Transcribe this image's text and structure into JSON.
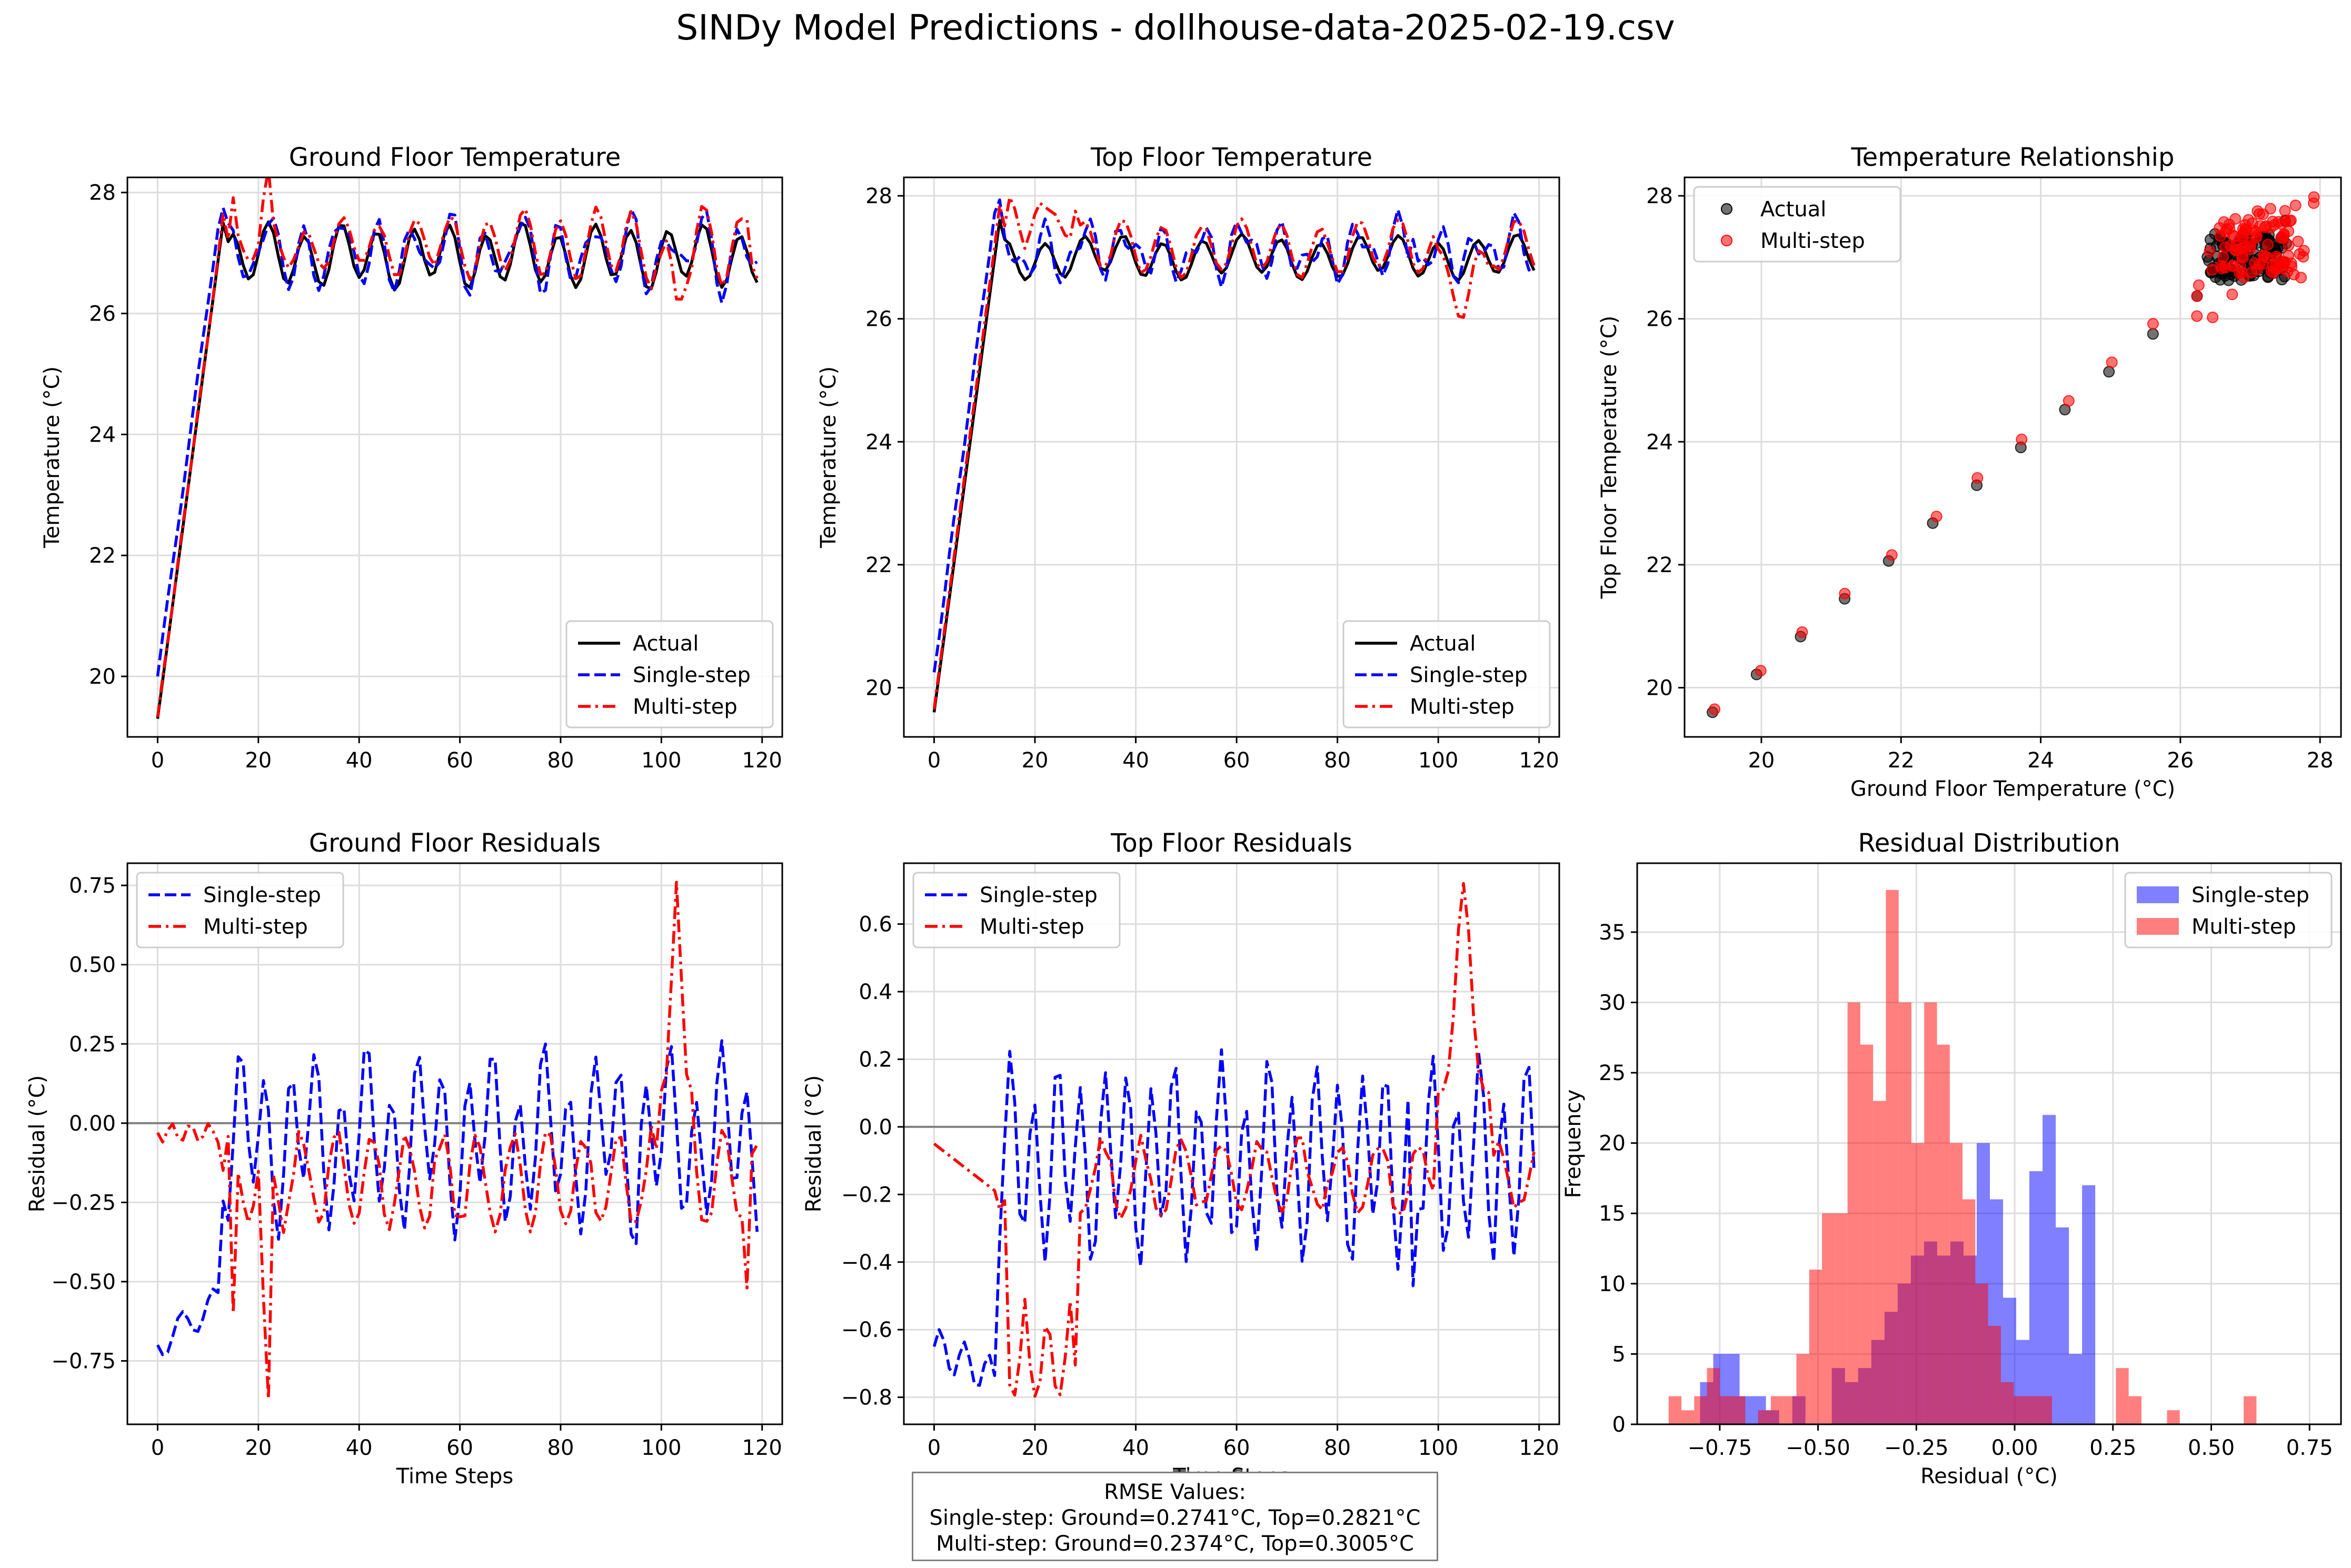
{
  "suptitle": "SINDy Model Predictions - dollhouse-data-2025-02-19.csv",
  "colors": {
    "actual": "#000000",
    "single": "#0000ff",
    "multi": "#ff0000",
    "zero_line": "#808080",
    "grid": "#d9d9d9"
  },
  "rmse": {
    "title": "RMSE Values:",
    "single": "Single-step: Ground=0.2741°C, Top=0.2821°C",
    "multi": "Multi-step: Ground=0.2374°C, Top=0.3005°C"
  },
  "chart_data": [
    {
      "id": "ground_temp",
      "type": "line",
      "title": "Ground Floor Temperature",
      "xlabel": "",
      "ylabel": "Temperature (°C)",
      "xlim": [
        -6,
        124
      ],
      "ylim": [
        19.0,
        28.25
      ],
      "xticks": [
        0,
        20,
        40,
        60,
        80,
        100,
        120
      ],
      "yticks": [
        20,
        22,
        24,
        26,
        28
      ],
      "legend": "lower-right",
      "series": [
        {
          "name": "Actual",
          "style": "solid",
          "color": "#000000",
          "kind": "ground_actual"
        },
        {
          "name": "Single-step",
          "style": "dashed",
          "color": "#0000ff",
          "kind": "ground_single"
        },
        {
          "name": "Multi-step",
          "style": "dashdot",
          "color": "#ff0000",
          "kind": "ground_multi"
        }
      ]
    },
    {
      "id": "top_temp",
      "type": "line",
      "title": "Top Floor Temperature",
      "xlabel": "",
      "ylabel": "Temperature (°C)",
      "xlim": [
        -6,
        124
      ],
      "ylim": [
        19.2,
        28.3
      ],
      "xticks": [
        0,
        20,
        40,
        60,
        80,
        100,
        120
      ],
      "yticks": [
        20,
        22,
        24,
        26,
        28
      ],
      "legend": "lower-right",
      "series": [
        {
          "name": "Actual",
          "style": "solid",
          "color": "#000000",
          "kind": "top_actual"
        },
        {
          "name": "Single-step",
          "style": "dashed",
          "color": "#0000ff",
          "kind": "top_single"
        },
        {
          "name": "Multi-step",
          "style": "dashdot",
          "color": "#ff0000",
          "kind": "top_multi"
        }
      ]
    },
    {
      "id": "relationship",
      "type": "scatter",
      "title": "Temperature Relationship",
      "xlabel": "Ground Floor Temperature (°C)",
      "ylabel": "Top Floor Temperature (°C)",
      "xlim": [
        18.9,
        28.3
      ],
      "ylim": [
        19.2,
        28.3
      ],
      "xticks": [
        20,
        22,
        24,
        26,
        28
      ],
      "yticks": [
        20,
        22,
        24,
        26,
        28
      ],
      "legend": "upper-left",
      "series": [
        {
          "name": "Actual",
          "style": "marker",
          "color": "#000000",
          "kind": "scatter_actual"
        },
        {
          "name": "Multi-step",
          "style": "marker",
          "color": "#ff0000",
          "kind": "scatter_multi"
        }
      ]
    },
    {
      "id": "ground_resid",
      "type": "line",
      "title": "Ground Floor Residuals",
      "xlabel": "Time Steps",
      "ylabel": "Residual (°C)",
      "xlim": [
        -6,
        124
      ],
      "ylim": [
        -0.95,
        0.82
      ],
      "xticks": [
        0,
        20,
        40,
        60,
        80,
        100,
        120
      ],
      "yticks": [
        -0.75,
        -0.5,
        -0.25,
        0.0,
        0.25,
        0.5,
        0.75
      ],
      "ytick_labels": [
        "−0.75",
        "−0.50",
        "−0.25",
        "0.00",
        "0.25",
        "0.50",
        "0.75"
      ],
      "legend": "upper-left",
      "zero_line": true,
      "series": [
        {
          "name": "Single-step",
          "style": "dashed",
          "color": "#0000ff",
          "kind": "gres_single"
        },
        {
          "name": "Multi-step",
          "style": "dashdot",
          "color": "#ff0000",
          "kind": "gres_multi"
        }
      ]
    },
    {
      "id": "top_resid",
      "type": "line",
      "title": "Top Floor Residuals",
      "xlabel": "Time Steps",
      "ylabel": "Residual (°C)",
      "xlim": [
        -6,
        124
      ],
      "ylim": [
        -0.88,
        0.78
      ],
      "xticks": [
        0,
        20,
        40,
        60,
        80,
        100,
        120
      ],
      "yticks": [
        -0.8,
        -0.6,
        -0.4,
        -0.2,
        0.0,
        0.2,
        0.4,
        0.6
      ],
      "ytick_labels": [
        "−0.8",
        "−0.6",
        "−0.4",
        "−0.2",
        "0.0",
        "0.2",
        "0.4",
        "0.6"
      ],
      "legend": "upper-left",
      "zero_line": true,
      "series": [
        {
          "name": "Single-step",
          "style": "dashed",
          "color": "#0000ff",
          "kind": "tres_single"
        },
        {
          "name": "Multi-step",
          "style": "dashdot",
          "color": "#ff0000",
          "kind": "tres_multi"
        }
      ]
    },
    {
      "id": "resid_dist",
      "type": "bar",
      "title": "Residual Distribution",
      "xlabel": "Residual (°C)",
      "ylabel": "Frequency",
      "xlim": [
        -0.96,
        0.83
      ],
      "ylim": [
        0,
        39.9
      ],
      "xticks": [
        -0.75,
        -0.5,
        -0.25,
        0.0,
        0.25,
        0.5,
        0.75
      ],
      "xtick_labels": [
        "−0.75",
        "−0.50",
        "−0.25",
        "0.00",
        "0.25",
        "0.50",
        "0.75"
      ],
      "yticks": [
        0,
        5,
        10,
        15,
        20,
        25,
        30,
        35
      ],
      "legend": "upper-right",
      "series": [
        {
          "name": "Single-step",
          "color": "#0000ff",
          "alpha": 0.5,
          "bin_start": -0.8,
          "bin_width": 0.0335,
          "values": [
            3,
            5,
            5,
            2,
            2,
            1,
            0,
            2,
            0,
            0,
            4,
            3,
            4,
            6,
            8,
            10,
            12,
            13,
            12,
            13,
            12,
            20,
            16,
            9,
            6,
            18,
            22,
            14,
            5,
            17,
            0
          ]
        },
        {
          "name": "Multi-step",
          "color": "#ff0000",
          "alpha": 0.5,
          "bin_start": -0.88,
          "bin_width": 0.0325,
          "values": [
            2,
            1,
            2,
            4,
            2,
            2,
            0,
            1,
            2,
            2,
            5,
            11,
            15,
            15,
            30,
            27,
            23,
            38,
            30,
            20,
            30,
            27,
            20,
            16,
            10,
            7,
            3,
            2,
            2,
            2,
            0,
            0,
            0,
            0,
            0,
            4,
            2,
            0,
            0,
            1,
            0,
            0,
            0,
            0,
            0,
            2
          ]
        }
      ]
    }
  ]
}
